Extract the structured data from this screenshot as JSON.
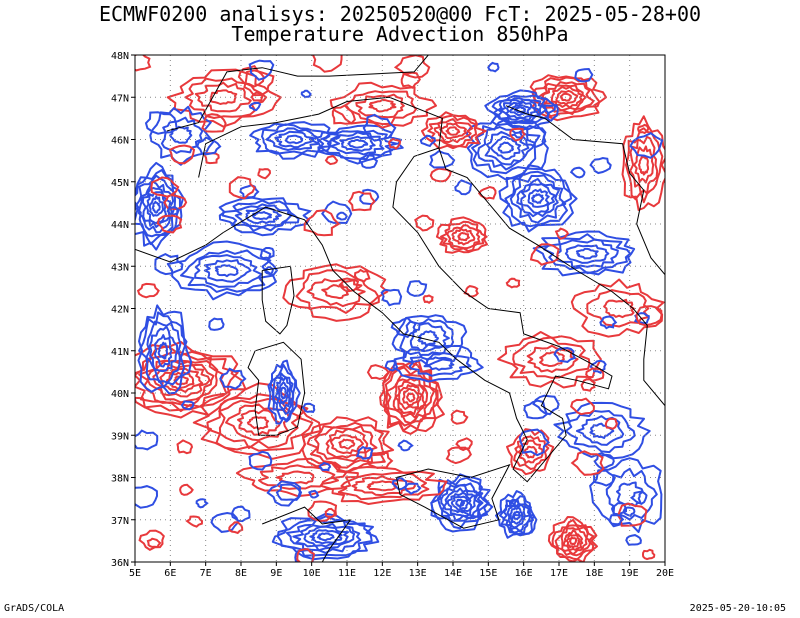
{
  "title": {
    "line1": "ECMWF0200 analisys: 20250520@00 FcT: 2025-05-28+00",
    "line2": "Temperature Advection 850hPa"
  },
  "footer": {
    "left": "GrADS/COLA",
    "right": "2025-05-20-10:05"
  },
  "map": {
    "lon_range": [
      5,
      20
    ],
    "lat_range": [
      36,
      48
    ],
    "lon_ticks": [
      "5E",
      "6E",
      "7E",
      "8E",
      "9E",
      "10E",
      "11E",
      "12E",
      "13E",
      "14E",
      "15E",
      "16E",
      "17E",
      "18E",
      "19E",
      "20E"
    ],
    "lat_ticks": [
      "36N",
      "37N",
      "38N",
      "39N",
      "40N",
      "41N",
      "42N",
      "43N",
      "44N",
      "45N",
      "46N",
      "47N",
      "48N"
    ],
    "grid": true,
    "colors": {
      "warm_advection": "#e8393c",
      "cold_advection": "#2f4ee3",
      "coastline": "#000000",
      "grid": "#888888"
    }
  }
}
